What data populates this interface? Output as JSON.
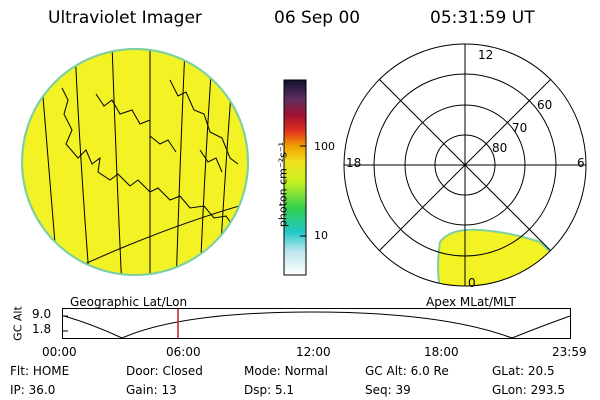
{
  "header": {
    "title": "Ultraviolet Imager",
    "date": "06 Sep 00",
    "time": "05:31:59 UT"
  },
  "colorbar": {
    "unit_label": "photon cm⁻²s⁻¹",
    "ticks": [
      "100",
      "10"
    ]
  },
  "polar": {
    "mlt_labels": [
      "12",
      "18",
      "6",
      "0"
    ],
    "lat_labels": [
      "60",
      "70",
      "80"
    ]
  },
  "panel_labels": {
    "geo": "Geographic Lat/Lon",
    "apex": "Apex MLat/MLT"
  },
  "altitude_plot": {
    "ylabel": "GC Alt",
    "yticks": [
      "9.0",
      "1.8"
    ],
    "xticks": [
      "00:00",
      "06:00",
      "12:00",
      "18:00",
      "23:59"
    ]
  },
  "info": {
    "row1": [
      {
        "key": "Flt:",
        "value": "HOME"
      },
      {
        "key": "Door:",
        "value": "Closed"
      },
      {
        "key": "Mode:",
        "value": "Normal"
      },
      {
        "key": "GC Alt:",
        "value": "6.0 Re"
      },
      {
        "key": "GLat:",
        "value": "20.5"
      }
    ],
    "row2": [
      {
        "key": "IP:",
        "value": "36.0"
      },
      {
        "key": "Gain:",
        "value": "13"
      },
      {
        "key": "Dsp:",
        "value": "5.1"
      },
      {
        "key": "Seq:",
        "value": "39"
      },
      {
        "key": "GLon:",
        "value": "293.5"
      }
    ]
  },
  "colors": {
    "image_fill": "#f2f224",
    "limb": "#7ed0a0",
    "marker": "#c82020"
  }
}
